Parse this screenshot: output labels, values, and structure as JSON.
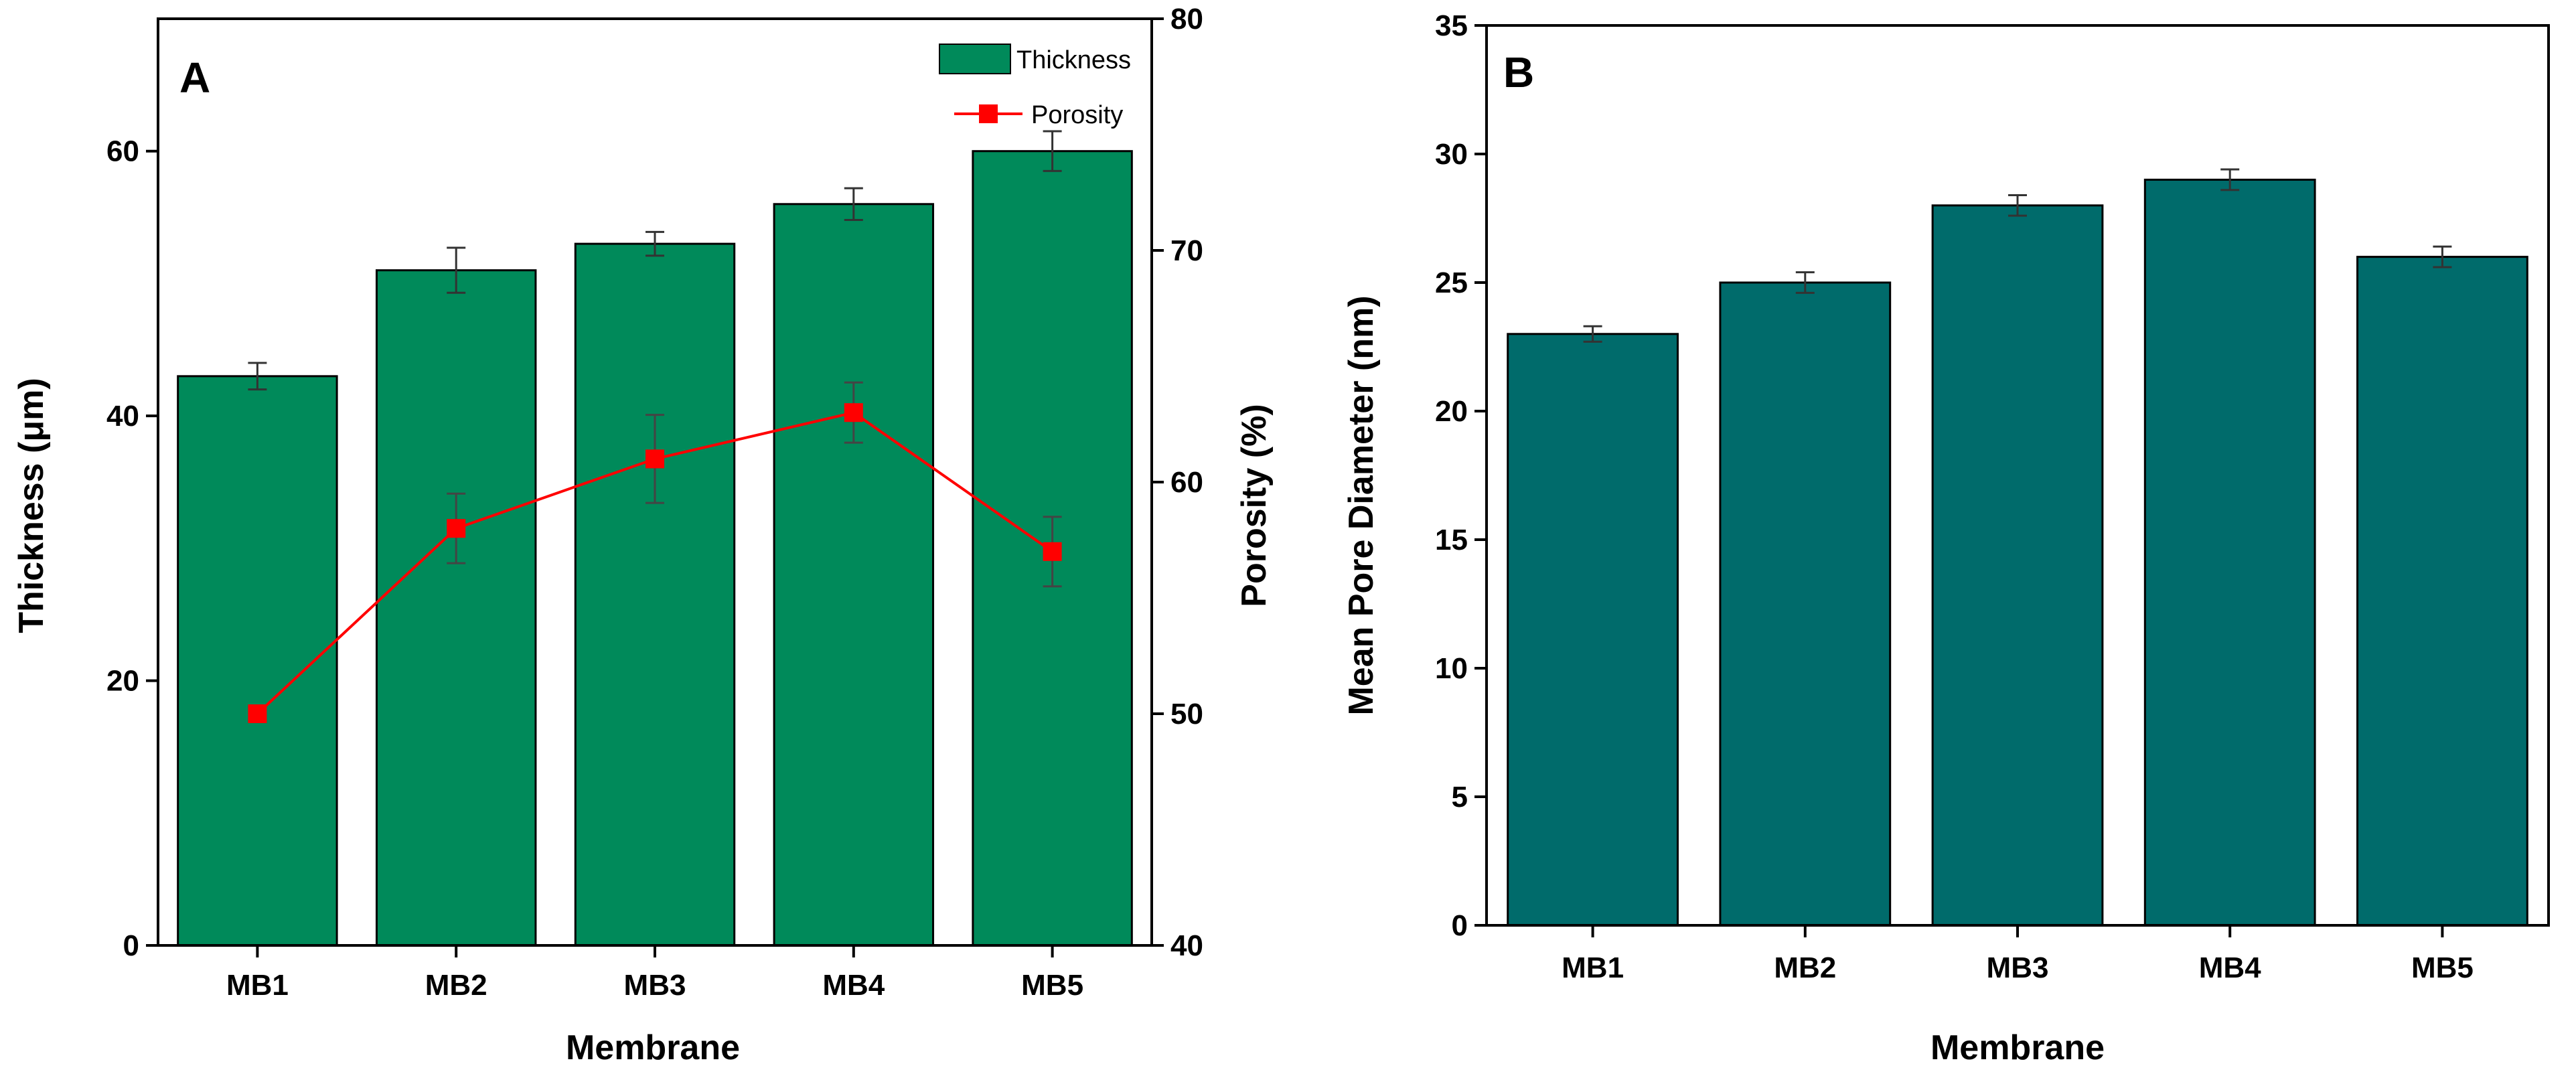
{
  "colors": {
    "thickness_bar": "#008a5a",
    "porosity_line": "#ff0000",
    "pore_bar": "#006b6b",
    "axis": "#000000"
  },
  "chart_data": [
    {
      "panel": "A",
      "type": "bar",
      "categories": [
        "MB1",
        "MB2",
        "MB3",
        "MB4",
        "MB5"
      ],
      "xlabel": "Membrane",
      "ylabel": "Thickness (μm)",
      "y2label": "Porosity (%)",
      "ylim": [
        0,
        70
      ],
      "y2lim": [
        40,
        80
      ],
      "yticks": [
        0,
        20,
        40,
        60
      ],
      "y2ticks": [
        40,
        50,
        60,
        70,
        80
      ],
      "legend_position": "top-right",
      "series": [
        {
          "name": "Thickness",
          "type": "bar",
          "axis": "left",
          "values": [
            43,
            51,
            53,
            56,
            60
          ],
          "errors": [
            1.0,
            1.7,
            0.9,
            1.2,
            1.5
          ]
        },
        {
          "name": "Porosity",
          "type": "line",
          "axis": "right",
          "marker": "square",
          "values": [
            50,
            58,
            61,
            63,
            57
          ],
          "errors": [
            0.3,
            1.5,
            1.9,
            1.3,
            1.5
          ]
        }
      ]
    },
    {
      "panel": "B",
      "type": "bar",
      "categories": [
        "MB1",
        "MB2",
        "MB3",
        "MB4",
        "MB5"
      ],
      "xlabel": "Membrane",
      "ylabel": "Mean Pore Diameter (nm)",
      "ylim": [
        0,
        35
      ],
      "yticks": [
        0,
        5,
        10,
        15,
        20,
        25,
        30,
        35
      ],
      "series": [
        {
          "type": "bar",
          "values": [
            23,
            25,
            28,
            29,
            26
          ],
          "errors": [
            0.3,
            0.4,
            0.4,
            0.4,
            0.4
          ]
        }
      ]
    }
  ]
}
